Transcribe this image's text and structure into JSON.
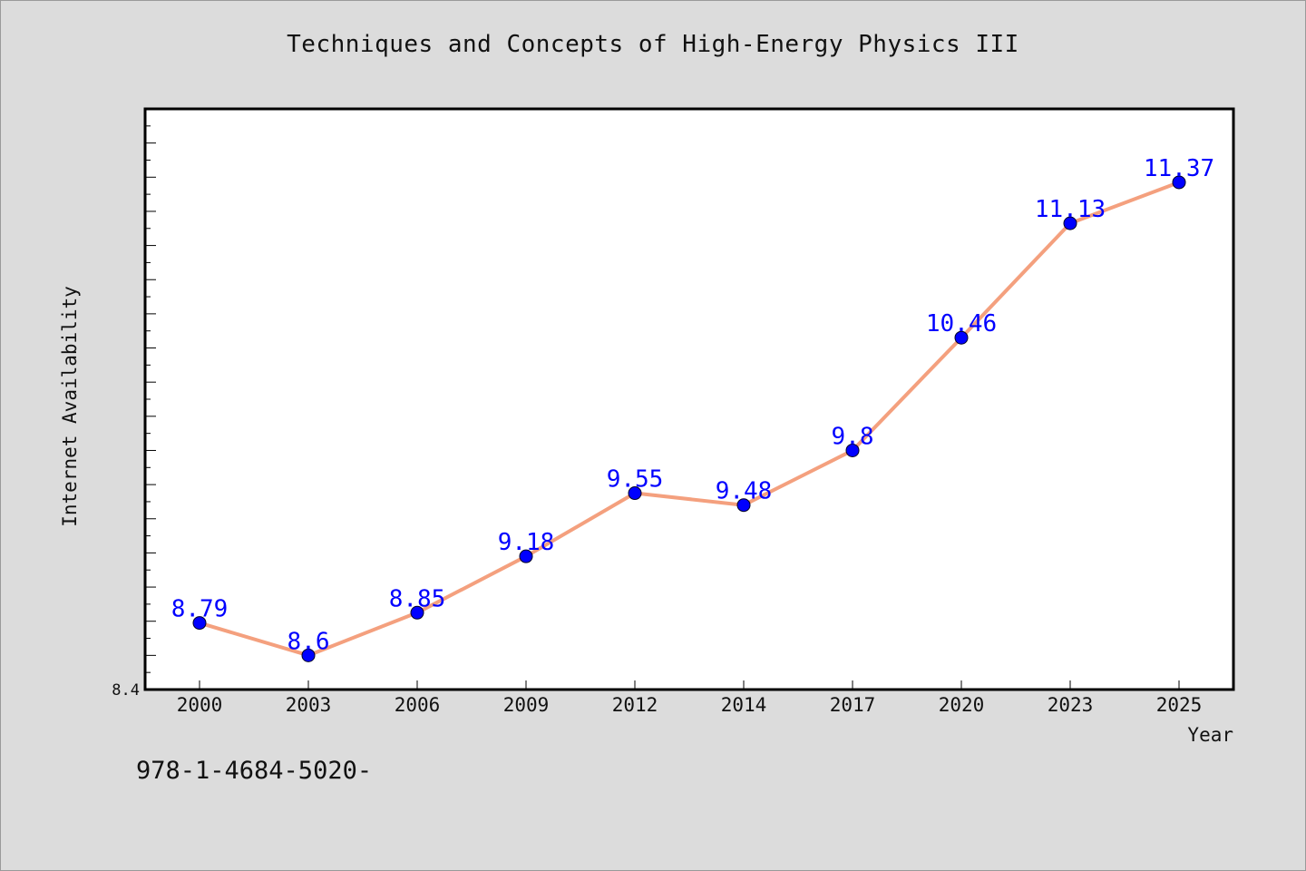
{
  "chart_data": {
    "type": "line",
    "title": "Techniques and Concepts of High-Energy Physics III",
    "xlabel": "Year",
    "ylabel": "Internet Availability",
    "categories": [
      "2000",
      "2003",
      "2006",
      "2009",
      "2012",
      "2014",
      "2017",
      "2020",
      "2023",
      "2025"
    ],
    "series": [
      {
        "values": [
          8.79,
          8.6,
          8.85,
          9.18,
          9.55,
          9.48,
          9.8,
          10.46,
          11.13,
          11.37
        ]
      }
    ],
    "data_labels": [
      "8.79",
      "8.6",
      "8.85",
      "9.18",
      "9.55",
      "9.48",
      "9.8",
      "10.46",
      "11.13",
      "11.37"
    ],
    "y_tick_labels": [
      "8.4"
    ],
    "ylim": [
      8.4,
      11.8
    ],
    "grid": false,
    "colors": {
      "line": "#f4a07e",
      "marker": "#0000ff",
      "data_label": "#0000ff",
      "plot_bg": "#ffffff",
      "page_bg": "#dcdcdc"
    }
  },
  "footer": {
    "text": "978-1-4684-5020-"
  }
}
